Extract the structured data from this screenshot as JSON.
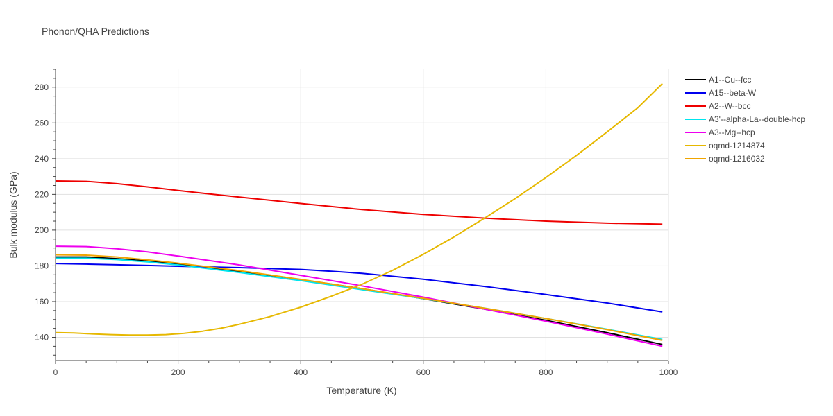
{
  "chart_data": {
    "type": "line",
    "title": "Phonon/QHA Predictions",
    "xlabel": "Temperature (K)",
    "ylabel": "Bulk modulus (GPa)",
    "xlim": [
      0,
      1000
    ],
    "ylim": [
      127,
      290
    ],
    "xticks": [
      0,
      200,
      400,
      600,
      800,
      1000
    ],
    "yticks": [
      140,
      160,
      180,
      200,
      220,
      240,
      260,
      280
    ],
    "grid": true,
    "legend_position": "right",
    "series": [
      {
        "name": "A1--Cu--fcc",
        "color": "#000000",
        "x": [
          0,
          50,
          100,
          150,
          200,
          300,
          400,
          500,
          600,
          700,
          800,
          900,
          990
        ],
        "y": [
          185.0,
          185.0,
          184.0,
          182.7,
          181.0,
          177.0,
          172.3,
          167.2,
          161.6,
          155.8,
          149.5,
          142.6,
          136.0
        ]
      },
      {
        "name": "A15--beta-W",
        "color": "#0000ee",
        "x": [
          0,
          50,
          100,
          150,
          200,
          300,
          400,
          450,
          500,
          600,
          700,
          800,
          900,
          990
        ],
        "y": [
          181.3,
          181.0,
          180.6,
          180.2,
          179.8,
          179.0,
          178.0,
          177.0,
          175.8,
          172.5,
          168.5,
          164.0,
          159.2,
          154.2
        ]
      },
      {
        "name": "A2--W--bcc",
        "color": "#ee0000",
        "x": [
          0,
          50,
          100,
          150,
          200,
          250,
          300,
          400,
          500,
          600,
          700,
          800,
          900,
          990
        ],
        "y": [
          227.5,
          227.3,
          226.0,
          224.2,
          222.2,
          220.3,
          218.5,
          214.9,
          211.5,
          208.8,
          206.7,
          205.0,
          203.9,
          203.3
        ]
      },
      {
        "name": "A3'--alpha-La--double-hcp",
        "color": "#00e5ee",
        "x": [
          0,
          50,
          100,
          150,
          200,
          300,
          400,
          500,
          600,
          700,
          800,
          900,
          990
        ],
        "y": [
          184.3,
          184.3,
          183.5,
          182.2,
          180.5,
          176.3,
          171.7,
          166.7,
          161.7,
          156.3,
          150.5,
          144.5,
          138.8
        ]
      },
      {
        "name": "A3--Mg--hcp",
        "color": "#ee00ee",
        "x": [
          0,
          50,
          100,
          150,
          200,
          300,
          400,
          500,
          600,
          700,
          800,
          900,
          990
        ],
        "y": [
          191.0,
          190.8,
          189.6,
          187.8,
          185.5,
          180.5,
          174.7,
          168.8,
          162.5,
          155.8,
          149.0,
          141.8,
          135.0
        ]
      },
      {
        "name": "oqmd-1214874",
        "color": "#e6b800",
        "x": [
          0,
          30,
          60,
          90,
          120,
          150,
          180,
          210,
          240,
          270,
          300,
          350,
          400,
          450,
          500,
          550,
          600,
          650,
          700,
          750,
          800,
          850,
          900,
          950,
          990
        ],
        "y": [
          142.6,
          142.4,
          141.9,
          141.5,
          141.3,
          141.3,
          141.5,
          142.2,
          143.4,
          145.1,
          147.3,
          151.6,
          156.9,
          163.0,
          169.7,
          177.5,
          186.5,
          196.2,
          206.7,
          217.7,
          229.4,
          241.8,
          255.0,
          268.5,
          282.0
        ]
      },
      {
        "name": "oqmd-1216032",
        "color": "#f0a500",
        "x": [
          0,
          50,
          100,
          150,
          200,
          300,
          400,
          500,
          600,
          700,
          800,
          900,
          990
        ],
        "y": [
          186.2,
          186.0,
          185.0,
          183.4,
          181.5,
          177.3,
          172.4,
          167.2,
          161.8,
          156.3,
          150.5,
          144.3,
          138.3
        ]
      }
    ]
  }
}
